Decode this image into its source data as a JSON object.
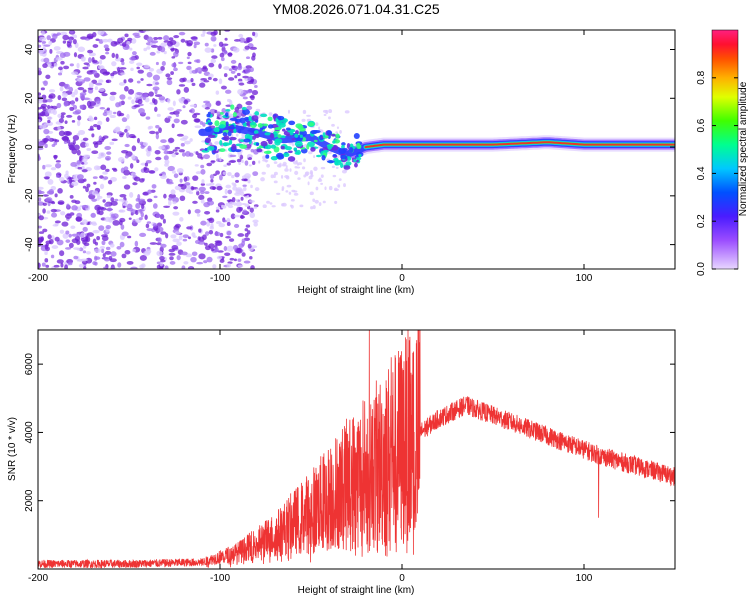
{
  "title": "YM08.2026.071.04.31.C25",
  "colors": {
    "background": "#ffffff",
    "axis": "#000000",
    "snr_line": "#ee3333",
    "spec_low": "#c8b4ff",
    "spec_mid": "#6e1fd6",
    "ridge": "#ff1a3a"
  },
  "chart_data": [
    {
      "type": "heatmap",
      "name": "spectrogram",
      "xlabel": "Height of straight line (km)",
      "ylabel": "Frequency (Hz)",
      "xlim": [
        -200,
        150
      ],
      "ylim": [
        -50,
        48
      ],
      "xticks": [
        -200,
        -100,
        0,
        100
      ],
      "yticks": [
        -40,
        -20,
        0,
        20,
        40
      ],
      "ridge": {
        "description_points": [
          {
            "x": -105,
            "y": 6
          },
          {
            "x": -95,
            "y": 8
          },
          {
            "x": -80,
            "y": 6
          },
          {
            "x": -65,
            "y": 3
          },
          {
            "x": -50,
            "y": 4
          },
          {
            "x": -40,
            "y": 0
          },
          {
            "x": -30,
            "y": -3
          },
          {
            "x": -20,
            "y": 0
          },
          {
            "x": -10,
            "y": 1
          },
          {
            "x": 0,
            "y": 1
          },
          {
            "x": 20,
            "y": 1
          },
          {
            "x": 50,
            "y": 1
          },
          {
            "x": 80,
            "y": 2
          },
          {
            "x": 100,
            "y": 1
          },
          {
            "x": 150,
            "y": 1
          }
        ]
      },
      "colorbar": {
        "label": "Normalized spectral amplitude",
        "range": [
          0.0,
          1.0
        ],
        "ticks": [
          0.0,
          0.2,
          0.4,
          0.6,
          0.8
        ]
      }
    },
    {
      "type": "line",
      "name": "snr",
      "xlabel": "Height of straight line (km)",
      "ylabel": "SNR (10 * v/v)",
      "xlim": [
        -200,
        150
      ],
      "ylim": [
        0,
        7000
      ],
      "xticks": [
        -200,
        -100,
        0,
        100
      ],
      "yticks": [
        2000,
        4000,
        6000
      ],
      "envelope": [
        {
          "x": -200,
          "y": 150
        },
        {
          "x": -150,
          "y": 150
        },
        {
          "x": -110,
          "y": 200
        },
        {
          "x": -90,
          "y": 500
        },
        {
          "x": -70,
          "y": 1000
        },
        {
          "x": -50,
          "y": 1700
        },
        {
          "x": -30,
          "y": 2500
        },
        {
          "x": -15,
          "y": 3000
        },
        {
          "x": 0,
          "y": 3600
        },
        {
          "x": 20,
          "y": 4400
        },
        {
          "x": 35,
          "y": 4800
        },
        {
          "x": 50,
          "y": 4500
        },
        {
          "x": 80,
          "y": 3900
        },
        {
          "x": 110,
          "y": 3300
        },
        {
          "x": 150,
          "y": 2700
        }
      ],
      "spikes": [
        {
          "x": -18,
          "y": 7000
        },
        {
          "x": -6,
          "y": 6200
        },
        {
          "x": 108,
          "y": 1500
        }
      ]
    }
  ]
}
